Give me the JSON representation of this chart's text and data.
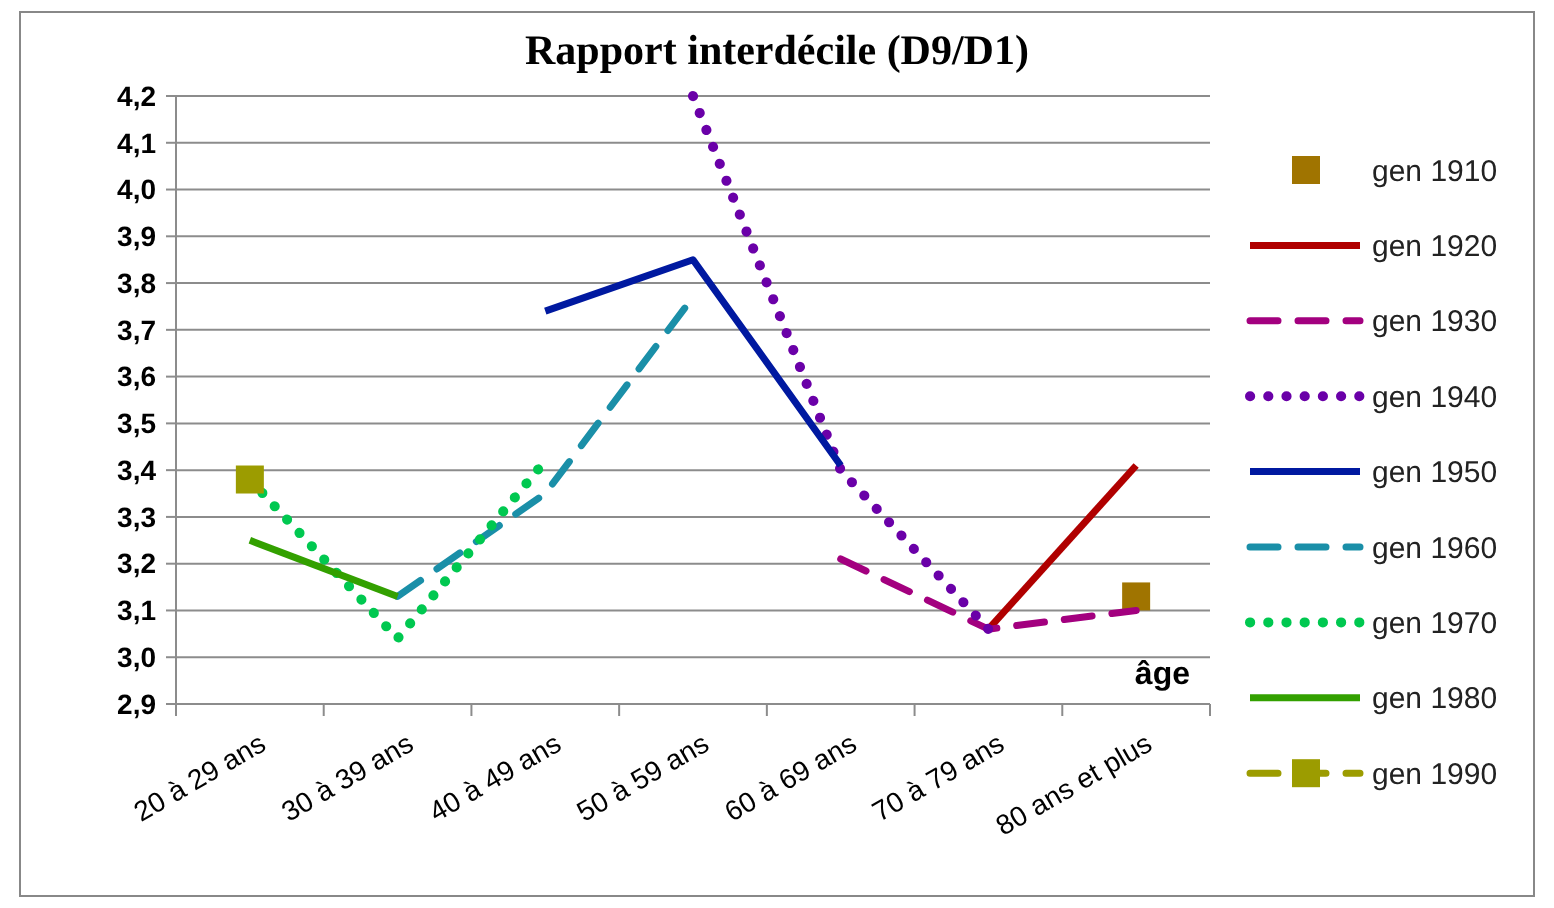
{
  "chart_data": {
    "type": "line",
    "title": "Rapport interdécile (D9/D1)",
    "xlabel": "âge",
    "categories": [
      "20 à 29 ans",
      "30 à 39 ans",
      "40 à 49 ans",
      "50 à 59 ans",
      "60 à 69 ans",
      "70 à 79 ans",
      "80 ans et plus"
    ],
    "ylim": [
      2.9,
      4.2
    ],
    "yticks": [
      {
        "value": 2.9,
        "label": "2,9"
      },
      {
        "value": 3.0,
        "label": "3,0"
      },
      {
        "value": 3.1,
        "label": "3,1"
      },
      {
        "value": 3.2,
        "label": "3,2"
      },
      {
        "value": 3.3,
        "label": "3,3"
      },
      {
        "value": 3.4,
        "label": "3,4"
      },
      {
        "value": 3.5,
        "label": "3,5"
      },
      {
        "value": 3.6,
        "label": "3,6"
      },
      {
        "value": 3.7,
        "label": "3,7"
      },
      {
        "value": 3.8,
        "label": "3,8"
      },
      {
        "value": 3.9,
        "label": "3,9"
      },
      {
        "value": 4.0,
        "label": "4,0"
      },
      {
        "value": 4.1,
        "label": "4,1"
      },
      {
        "value": 4.2,
        "label": "4,2"
      }
    ],
    "grid": "y",
    "legend": "right",
    "series": [
      {
        "name": "gen 1910",
        "color": "#a07400",
        "marker": "square",
        "line_style": "none",
        "values": [
          null,
          null,
          null,
          null,
          null,
          null,
          3.13
        ]
      },
      {
        "name": "gen 1920",
        "color": "#b00000",
        "marker": "none",
        "line_style": "solid",
        "values": [
          null,
          null,
          null,
          null,
          null,
          3.06,
          3.41
        ]
      },
      {
        "name": "gen 1930",
        "color": "#a3007f",
        "marker": "none",
        "line_style": "dashed",
        "values": [
          null,
          null,
          null,
          null,
          3.21,
          3.06,
          3.1
        ]
      },
      {
        "name": "gen 1940",
        "color": "#6a00a8",
        "marker": "none",
        "line_style": "dotted",
        "values": [
          null,
          null,
          null,
          4.2,
          3.4,
          3.06,
          null
        ]
      },
      {
        "name": "gen 1950",
        "color": "#0019a0",
        "marker": "none",
        "line_style": "solid",
        "values": [
          null,
          null,
          3.74,
          3.85,
          3.41,
          null,
          null
        ]
      },
      {
        "name": "gen 1960",
        "color": "#1a8fa8",
        "marker": "none",
        "line_style": "dashed",
        "values": [
          null,
          3.13,
          3.35,
          3.77,
          null,
          null,
          null
        ]
      },
      {
        "name": "gen 1970",
        "color": "#00c850",
        "marker": "none",
        "line_style": "dotted",
        "values": [
          3.38,
          3.04,
          3.42,
          null,
          null,
          null,
          null
        ]
      },
      {
        "name": "gen 1980",
        "color": "#33a000",
        "marker": "none",
        "line_style": "solid",
        "values": [
          3.25,
          3.13,
          null,
          null,
          null,
          null,
          null
        ]
      },
      {
        "name": "gen 1990",
        "color": "#9c9c00",
        "marker": "square",
        "line_style": "dashed",
        "values": [
          3.38,
          null,
          null,
          null,
          null,
          null,
          null
        ]
      }
    ]
  }
}
